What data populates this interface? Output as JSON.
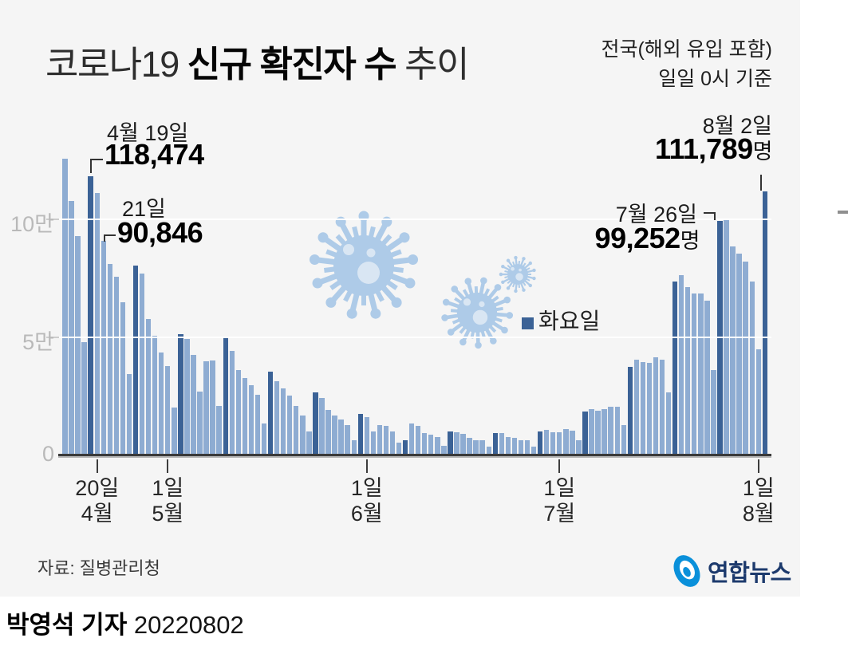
{
  "title": {
    "prefix": "코로나19 ",
    "bold": "신규 확진자 수",
    "suffix": " 추이"
  },
  "subtitle": {
    "line1": "전국(해외 유입 포함)",
    "line2": "일일 0시 기준"
  },
  "legend": {
    "label": "화요일",
    "color": "#3B6296"
  },
  "annotations": [
    {
      "date_label": "4월 19일",
      "value_label": "118,474",
      "unit": ""
    },
    {
      "date_label": "21일",
      "value_label": "90,846",
      "unit": ""
    },
    {
      "date_label": "8월 2일",
      "value_label": "111,789",
      "unit": "명"
    },
    {
      "date_label": "7월 26일",
      "value_label": "99,252",
      "unit": "명"
    }
  ],
  "source": "자료: 질병관리청",
  "byline": {
    "bold": "박영석 기자",
    "date": "20220802"
  },
  "logo": {
    "text": "연합뉴스",
    "icon": "yonhap-swirl-icon",
    "icon_color": "#0a90da",
    "text_color": "#1d3a6d"
  },
  "icons": {
    "decoration": "coronavirus-icon",
    "decoration_color": "#AECBE8"
  },
  "chart_data": {
    "type": "bar",
    "title": "코로나19 신규 확진자 수 추이",
    "subtitle": "전국(해외 유입 포함) 일일 0시 기준",
    "unit": "명",
    "year": 2022,
    "ylim": [
      0,
      130000
    ],
    "y_ticks": [
      {
        "label": "10만",
        "value": 100000
      },
      {
        "label": "5만",
        "value": 50000
      },
      {
        "label": "0",
        "value": 0
      }
    ],
    "x_ticks": [
      {
        "line1": "20일",
        "line2": "4월",
        "bar_index": 5
      },
      {
        "line1": "1일",
        "line2": "5월",
        "bar_index": 16
      },
      {
        "line1": "1일",
        "line2": "6월",
        "bar_index": 47
      },
      {
        "line1": "1일",
        "line2": "7월",
        "bar_index": 77
      },
      {
        "line1": "1일",
        "line2": "8월",
        "bar_index": 108
      }
    ],
    "legend_note": "dark bars are Tuesdays (화요일)",
    "colors": {
      "bar": "#8EACD2",
      "tuesday_bar": "#3B6296"
    },
    "grid": "white horizontal lines at 50000 and 100000",
    "dates": [
      "04-15",
      "04-16",
      "04-17",
      "04-18",
      "04-19",
      "04-20",
      "04-21",
      "04-22",
      "04-23",
      "04-24",
      "04-25",
      "04-26",
      "04-27",
      "04-28",
      "04-29",
      "04-30",
      "05-01",
      "05-02",
      "05-03",
      "05-04",
      "05-05",
      "05-06",
      "05-07",
      "05-08",
      "05-09",
      "05-10",
      "05-11",
      "05-12",
      "05-13",
      "05-14",
      "05-15",
      "05-16",
      "05-17",
      "05-18",
      "05-19",
      "05-20",
      "05-21",
      "05-22",
      "05-23",
      "05-24",
      "05-25",
      "05-26",
      "05-27",
      "05-28",
      "05-29",
      "05-30",
      "05-31",
      "06-01",
      "06-02",
      "06-03",
      "06-04",
      "06-05",
      "06-06",
      "06-07",
      "06-08",
      "06-09",
      "06-10",
      "06-11",
      "06-12",
      "06-13",
      "06-14",
      "06-15",
      "06-16",
      "06-17",
      "06-18",
      "06-19",
      "06-20",
      "06-21",
      "06-22",
      "06-23",
      "06-24",
      "06-25",
      "06-26",
      "06-27",
      "06-28",
      "06-29",
      "06-30",
      "07-01",
      "07-02",
      "07-03",
      "07-04",
      "07-05",
      "07-06",
      "07-07",
      "07-08",
      "07-09",
      "07-10",
      "07-11",
      "07-12",
      "07-13",
      "07-14",
      "07-15",
      "07-16",
      "07-17",
      "07-18",
      "07-19",
      "07-20",
      "07-21",
      "07-22",
      "07-23",
      "07-24",
      "07-25",
      "07-26",
      "07-27",
      "07-28",
      "07-29",
      "07-30",
      "07-31",
      "08-01",
      "08-02"
    ],
    "values": [
      125846,
      107916,
      93001,
      47743,
      118474,
      111291,
      90846,
      81058,
      75449,
      64725,
      34370,
      80361,
      76787,
      57464,
      50568,
      43286,
      37771,
      20084,
      51131,
      49064,
      42296,
      26714,
      39600,
      40064,
      20601,
      49933,
      43925,
      35906,
      32451,
      29548,
      25434,
      13296,
      35117,
      31352,
      28130,
      25125,
      20722,
      16500,
      9975,
      26344,
      23956,
      18816,
      16584,
      14957,
      12654,
      6139,
      17191,
      15797,
      9896,
      12542,
      12048,
      9835,
      5022,
      6172,
      13358,
      12161,
      9315,
      8442,
      7382,
      3828,
      9778,
      9435,
      8978,
      7198,
      6073,
      6071,
      3538,
      9310,
      8992,
      7494,
      7227,
      6246,
      6239,
      3423,
      9896,
      10463,
      9591,
      9528,
      10715,
      10059,
      6253,
      18147,
      19371,
      18511,
      19323,
      20410,
      20301,
      12693,
      37360,
      40266,
      39196,
      38882,
      41310,
      40342,
      26299,
      73582,
      76402,
      71170,
      68632,
      68551,
      65433,
      35883,
      99252,
      100285,
      88384,
      85320,
      82002,
      73589,
      44689,
      111789
    ],
    "tuesday_indices": [
      4,
      11,
      18,
      25,
      32,
      39,
      46,
      53,
      60,
      67,
      74,
      81,
      88,
      95,
      102,
      109
    ],
    "labeled_points": [
      {
        "date": "04-19",
        "value": 118474
      },
      {
        "date": "04-21",
        "value": 90846
      },
      {
        "date": "07-26",
        "value": 99252
      },
      {
        "date": "08-02",
        "value": 111789
      }
    ]
  }
}
